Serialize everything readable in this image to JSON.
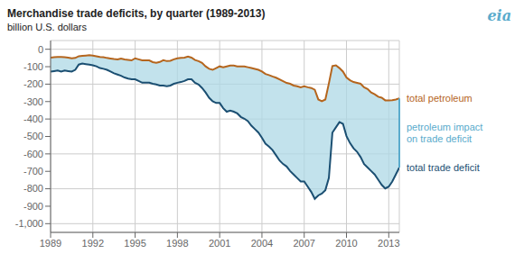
{
  "chart_data": {
    "type": "line",
    "title": "Merchandise trade deficits, by quarter (1989-2013)",
    "subtitle": "billion U.S. dollars",
    "grid": true,
    "xlim": [
      1989.0,
      2013.75
    ],
    "xticks": [
      1989,
      1992,
      1995,
      1998,
      2001,
      2004,
      2007,
      2010,
      2013
    ],
    "ylim": [
      -1050,
      50
    ],
    "yticks": [
      0,
      -100,
      -200,
      -300,
      -400,
      -500,
      -600,
      -700,
      -800,
      -900,
      {
        "value": -1000,
        "label": "-1,000"
      }
    ],
    "fill_color": "#add8e6",
    "x": [
      1989.0,
      1989.25,
      1989.5,
      1989.75,
      1990.0,
      1990.25,
      1990.5,
      1990.75,
      1991.0,
      1991.25,
      1991.5,
      1991.75,
      1992.0,
      1992.25,
      1992.5,
      1992.75,
      1993.0,
      1993.25,
      1993.5,
      1993.75,
      1994.0,
      1994.25,
      1994.5,
      1994.75,
      1995.0,
      1995.25,
      1995.5,
      1995.75,
      1996.0,
      1996.25,
      1996.5,
      1996.75,
      1997.0,
      1997.25,
      1997.5,
      1997.75,
      1998.0,
      1998.25,
      1998.5,
      1998.75,
      1999.0,
      1999.25,
      1999.5,
      1999.75,
      2000.0,
      2000.25,
      2000.5,
      2000.75,
      2001.0,
      2001.25,
      2001.5,
      2001.75,
      2002.0,
      2002.25,
      2002.5,
      2002.75,
      2003.0,
      2003.25,
      2003.5,
      2003.75,
      2004.0,
      2004.25,
      2004.5,
      2004.75,
      2005.0,
      2005.25,
      2005.5,
      2005.75,
      2006.0,
      2006.25,
      2006.5,
      2006.75,
      2007.0,
      2007.25,
      2007.5,
      2007.75,
      2008.0,
      2008.25,
      2008.5,
      2008.75,
      2009.0,
      2009.25,
      2009.5,
      2009.75,
      2010.0,
      2010.25,
      2010.5,
      2010.75,
      2011.0,
      2011.25,
      2011.5,
      2011.75,
      2012.0,
      2012.25,
      2012.5,
      2012.75,
      2013.0,
      2013.25,
      2013.5,
      2013.75
    ],
    "series": [
      {
        "name": "total trade deficit",
        "color": "#1b4f72",
        "values": [
          -128,
          -125,
          -122,
          -128,
          -122,
          -125,
          -128,
          -118,
          -88,
          -82,
          -85,
          -88,
          -92,
          -98,
          -108,
          -112,
          -118,
          -128,
          -138,
          -145,
          -152,
          -162,
          -168,
          -172,
          -172,
          -182,
          -192,
          -192,
          -192,
          -198,
          -202,
          -208,
          -208,
          -212,
          -208,
          -198,
          -192,
          -188,
          -182,
          -172,
          -172,
          -192,
          -202,
          -222,
          -248,
          -278,
          -298,
          -308,
          -308,
          -338,
          -358,
          -352,
          -358,
          -368,
          -388,
          -398,
          -412,
          -438,
          -458,
          -478,
          -508,
          -542,
          -558,
          -578,
          -608,
          -638,
          -658,
          -672,
          -698,
          -718,
          -738,
          -758,
          -758,
          -788,
          -818,
          -858,
          -838,
          -828,
          -808,
          -738,
          -478,
          -448,
          -418,
          -428,
          -498,
          -538,
          -568,
          -588,
          -618,
          -658,
          -678,
          -698,
          -718,
          -748,
          -778,
          -798,
          -788,
          -758,
          -718,
          -678
        ]
      },
      {
        "name": "total petroleum",
        "color": "#b5651d",
        "values": [
          -48,
          -46,
          -44,
          -44,
          -46,
          -48,
          -52,
          -50,
          -40,
          -38,
          -36,
          -34,
          -36,
          -40,
          -44,
          -46,
          -50,
          -53,
          -56,
          -58,
          -53,
          -58,
          -61,
          -64,
          -52,
          -58,
          -64,
          -64,
          -64,
          -74,
          -78,
          -73,
          -63,
          -68,
          -66,
          -58,
          -52,
          -50,
          -48,
          -42,
          -48,
          -62,
          -68,
          -78,
          -98,
          -112,
          -118,
          -108,
          -98,
          -103,
          -98,
          -93,
          -93,
          -98,
          -98,
          -98,
          -103,
          -108,
          -113,
          -118,
          -128,
          -142,
          -148,
          -156,
          -163,
          -173,
          -183,
          -193,
          -198,
          -208,
          -212,
          -218,
          -212,
          -218,
          -222,
          -232,
          -288,
          -298,
          -288,
          -196,
          -96,
          -92,
          -108,
          -128,
          -162,
          -178,
          -188,
          -193,
          -198,
          -218,
          -228,
          -248,
          -258,
          -272,
          -278,
          -293,
          -293,
          -292,
          -288,
          -282
        ]
      }
    ],
    "annotations": [
      {
        "text": "petroleum impact\non trade deficit",
        "color": "#5aabcc"
      },
      {
        "text": "eia",
        "color": "#5aabcc"
      }
    ]
  }
}
